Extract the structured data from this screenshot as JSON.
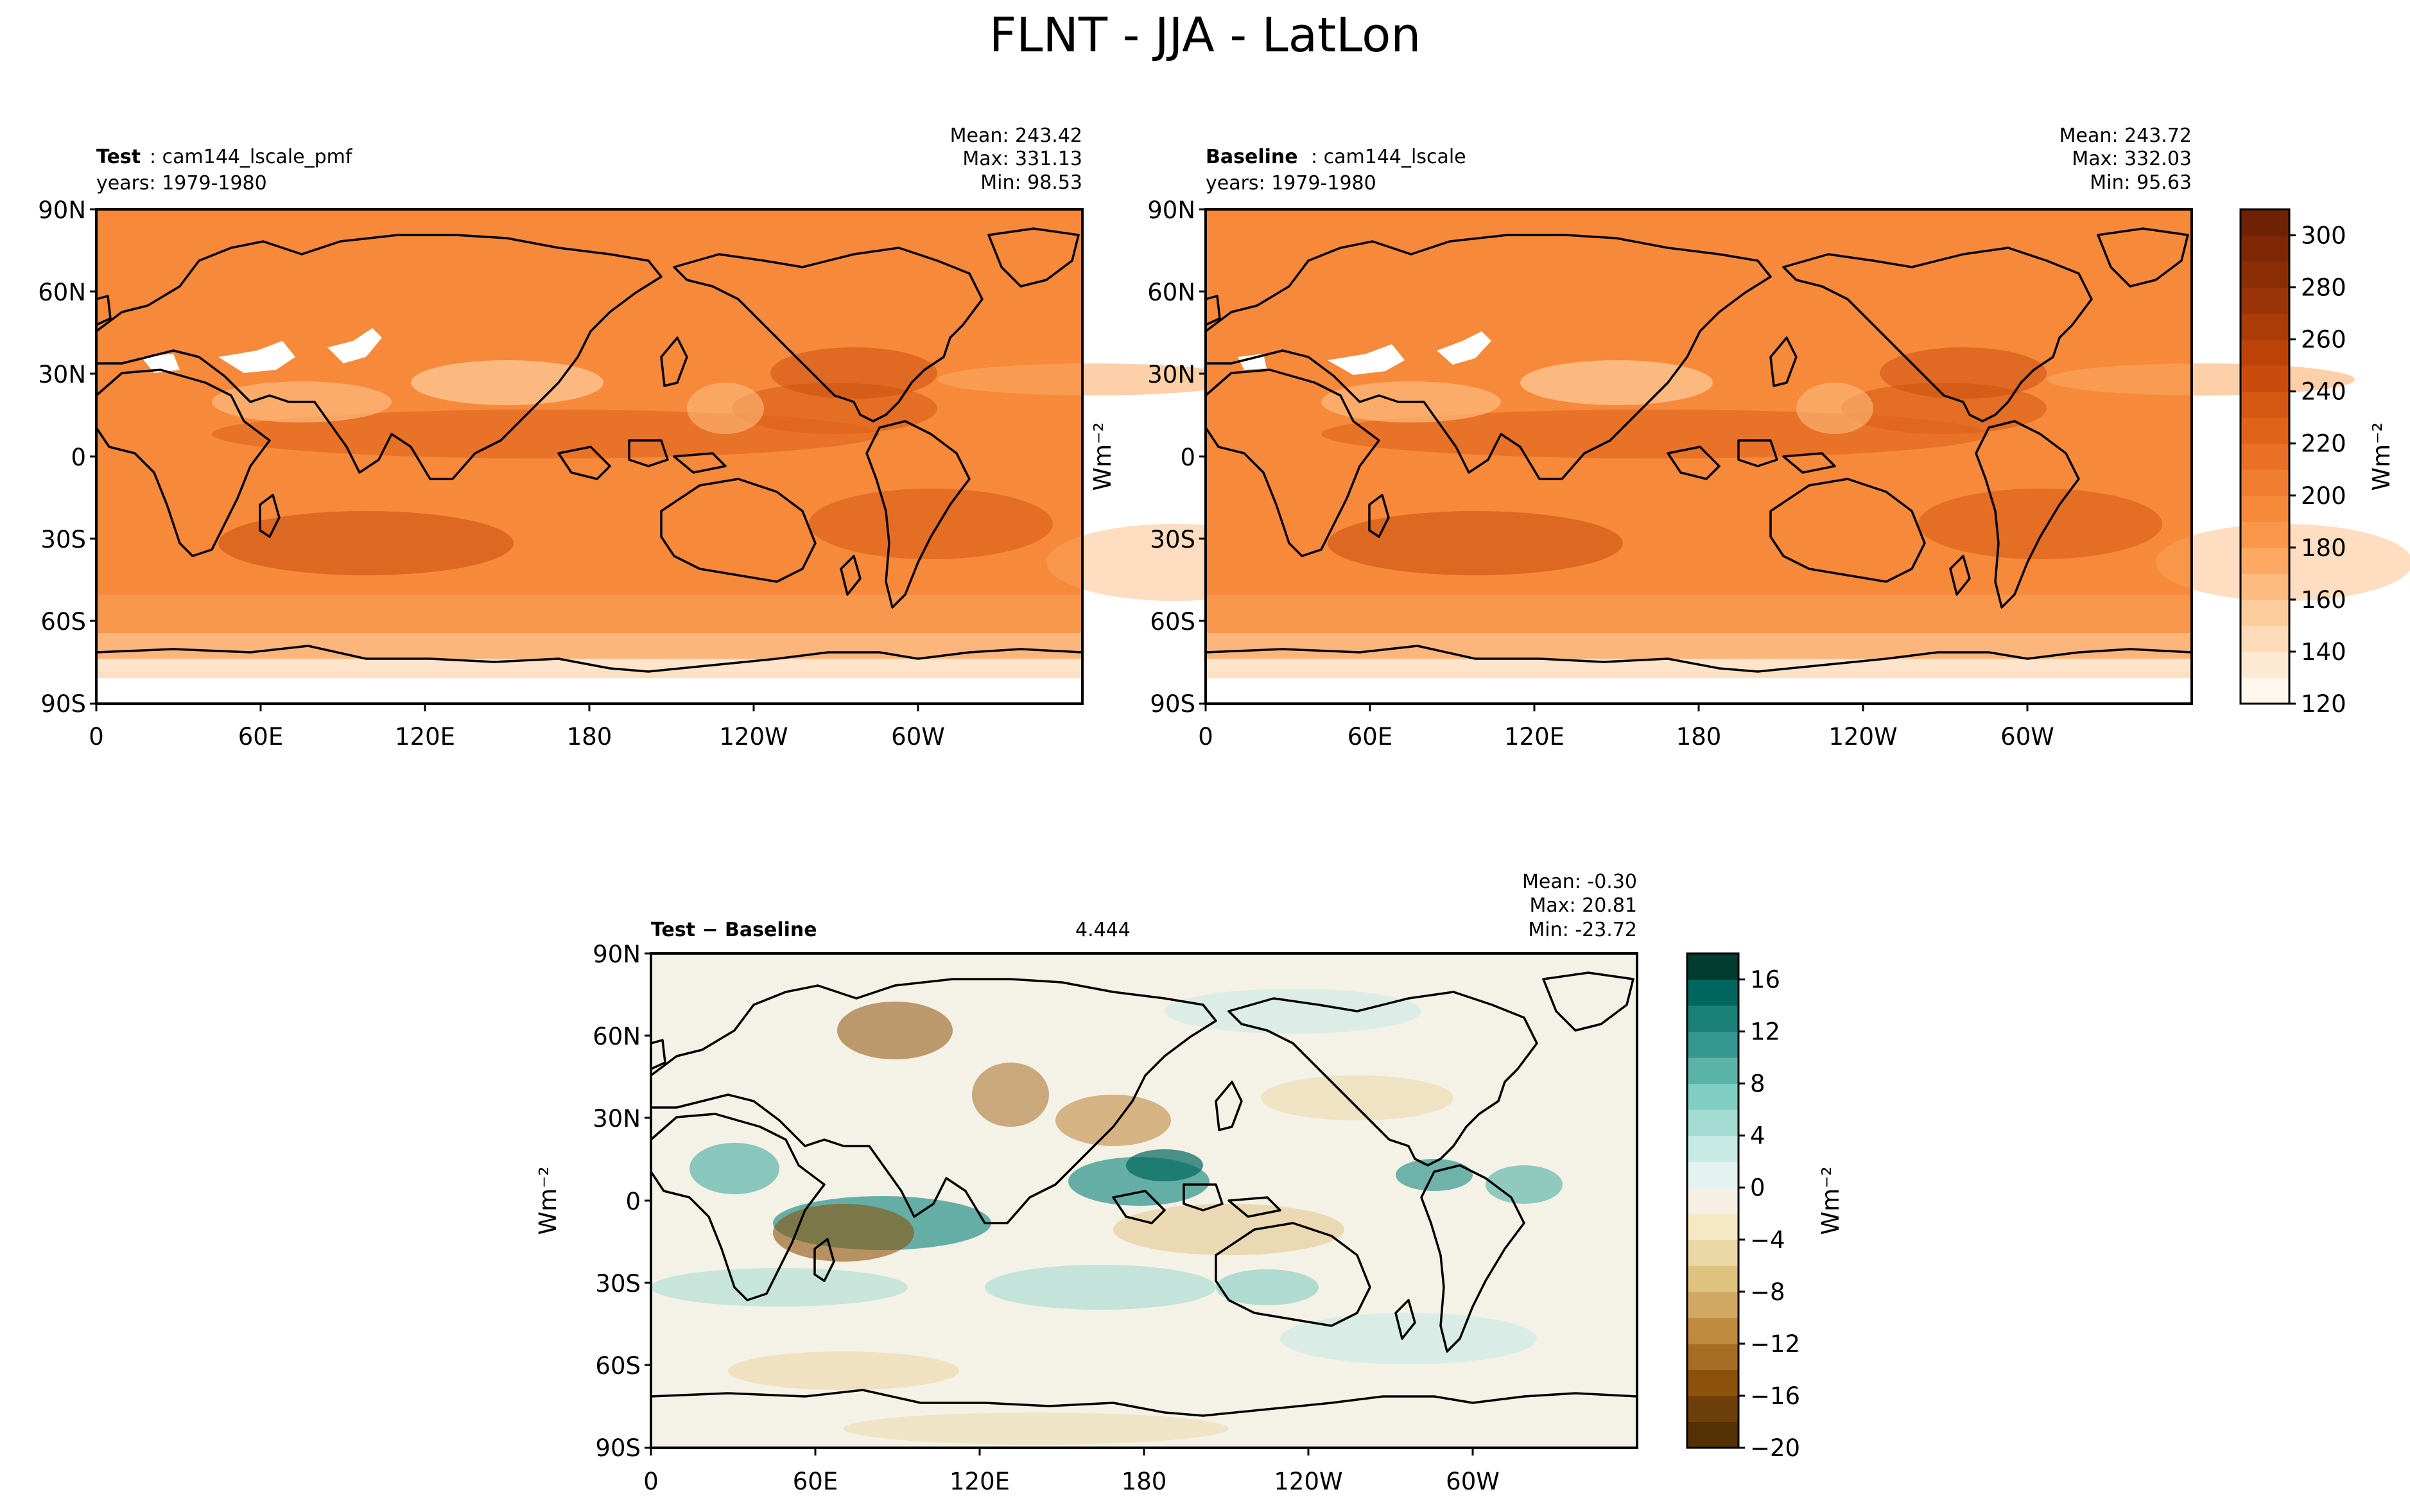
{
  "figure": {
    "title": "FLNT - JJA - LatLon"
  },
  "chart_data": [
    {
      "type": "heatmap",
      "panel": "test",
      "label_bold": "Test",
      "label_rest": ": cam144_lscale_pmf",
      "years": "years: 1979-1980",
      "stats": [
        "Mean: 243.42",
        "Max: 331.13",
        "Min: 98.53"
      ],
      "ylabel": "",
      "x_ticks": [
        "0",
        "60E",
        "120E",
        "180",
        "120W",
        "60W"
      ],
      "y_ticks": [
        "90N",
        "60N",
        "30N",
        "0",
        "30S",
        "60S",
        "90S"
      ],
      "mean": 243.42,
      "max": 331.13,
      "min": 98.53
    },
    {
      "type": "heatmap",
      "panel": "baseline",
      "label_bold": "Baseline",
      "label_rest": ": cam144_lscale",
      "years": "years: 1979-1980",
      "stats": [
        "Mean: 243.72",
        "Max: 332.03",
        "Min: 95.63"
      ],
      "ylabel": "Wm⁻²",
      "x_ticks": [
        "0",
        "60E",
        "120E",
        "180",
        "120W",
        "60W"
      ],
      "y_ticks": [
        "90N",
        "60N",
        "30N",
        "0",
        "30S",
        "60S",
        "90S"
      ],
      "mean": 243.72,
      "max": 332.03,
      "min": 95.63
    },
    {
      "type": "heatmap",
      "panel": "diff",
      "label_bold": "Test − Baseline",
      "label_rest": "",
      "rmse": 4.444,
      "stats": [
        "Mean: -0.30",
        "Max: 20.81",
        "Min: -23.72"
      ],
      "ylabel": "Wm⁻²",
      "x_ticks": [
        "0",
        "60E",
        "120E",
        "180",
        "120W",
        "60W"
      ],
      "y_ticks": [
        "90N",
        "60N",
        "30N",
        "0",
        "30S",
        "60S",
        "90S"
      ],
      "mean": -0.3,
      "max": 20.81,
      "min": -23.72
    }
  ],
  "colorbar_main": {
    "label": "Wm⁻²",
    "range": [
      120,
      310
    ],
    "levels": 19,
    "ticks": [
      120,
      140,
      160,
      180,
      200,
      220,
      240,
      260,
      280,
      300
    ],
    "colors": [
      "#fff6ec",
      "#fee9d3",
      "#fedcb9",
      "#fdcc9c",
      "#fdbb7f",
      "#fda964",
      "#fb974b",
      "#f6893a",
      "#f07d2f",
      "#e97024",
      "#e0631a",
      "#d45712",
      "#c94c0c",
      "#bb4308",
      "#ab3b07",
      "#9b3406",
      "#8b2e05",
      "#7f2704",
      "#6e2203"
    ]
  },
  "colorbar_diff": {
    "label": "Wm⁻²",
    "range": [
      -20,
      18
    ],
    "levels": 19,
    "ticks": [
      -20,
      -16,
      -12,
      -8,
      -4,
      0,
      4,
      8,
      12,
      16
    ],
    "colors": [
      "#543005",
      "#6f3f0a",
      "#8c510a",
      "#a66e25",
      "#bf8b3f",
      "#d1a863",
      "#dfc27d",
      "#ecd7a6",
      "#f6e8c3",
      "#f5f0e3",
      "#e4f2f0",
      "#c7eae5",
      "#a3dad2",
      "#80cdc1",
      "#5bb3a8",
      "#35978f",
      "#1a7f77",
      "#01665e",
      "#003c30"
    ]
  },
  "colors": {
    "map_base_main": "#f6893a",
    "map_base_diff": "#f4f1e6",
    "land_outline": "#000000"
  }
}
